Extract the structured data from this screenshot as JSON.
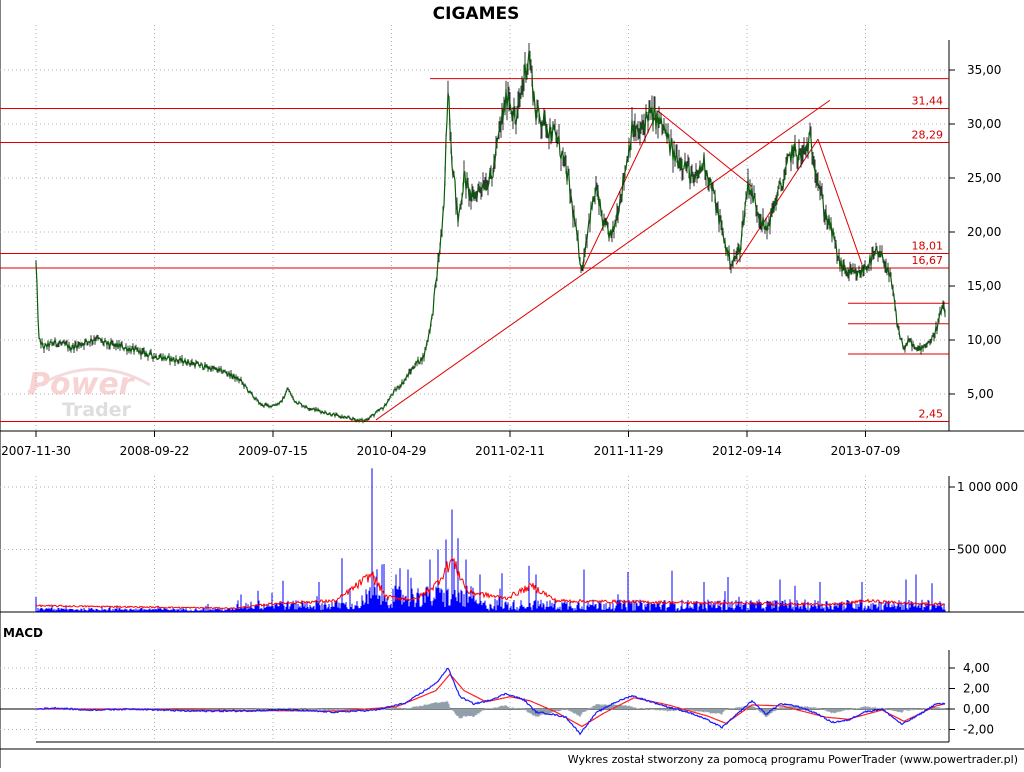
{
  "chart_data": {
    "type": "line",
    "title": "CIGAMES",
    "x_ticks": [
      "2007-11-30",
      "2008-09-22",
      "2009-07-15",
      "2010-04-29",
      "2011-02-11",
      "2011-11-29",
      "2012-09-14",
      "2013-07-09"
    ],
    "price": {
      "y_ticks": [
        "5,00",
        "10,00",
        "15,00",
        "20,00",
        "25,00",
        "30,00",
        "35,00"
      ],
      "ylim": [
        2,
        38
      ],
      "series": [
        {
          "x": 0,
          "y": 17.0
        },
        {
          "x": 3,
          "y": 10.0
        },
        {
          "x": 8,
          "y": 9.3
        },
        {
          "x": 20,
          "y": 9.8
        },
        {
          "x": 35,
          "y": 9.3
        },
        {
          "x": 50,
          "y": 9.8
        },
        {
          "x": 60,
          "y": 10.2
        },
        {
          "x": 70,
          "y": 9.6
        },
        {
          "x": 85,
          "y": 9.4
        },
        {
          "x": 100,
          "y": 9.0
        },
        {
          "x": 115,
          "y": 8.6
        },
        {
          "x": 130,
          "y": 8.3
        },
        {
          "x": 150,
          "y": 8.0
        },
        {
          "x": 170,
          "y": 7.5
        },
        {
          "x": 190,
          "y": 7.0
        },
        {
          "x": 205,
          "y": 6.2
        },
        {
          "x": 215,
          "y": 5.0
        },
        {
          "x": 225,
          "y": 4.0
        },
        {
          "x": 235,
          "y": 3.9
        },
        {
          "x": 245,
          "y": 4.2
        },
        {
          "x": 252,
          "y": 5.5
        },
        {
          "x": 258,
          "y": 4.4
        },
        {
          "x": 270,
          "y": 3.8
        },
        {
          "x": 285,
          "y": 3.4
        },
        {
          "x": 300,
          "y": 3.0
        },
        {
          "x": 315,
          "y": 2.7
        },
        {
          "x": 328,
          "y": 2.5
        },
        {
          "x": 338,
          "y": 3.1
        },
        {
          "x": 348,
          "y": 3.8
        },
        {
          "x": 358,
          "y": 5.2
        },
        {
          "x": 368,
          "y": 6.2
        },
        {
          "x": 378,
          "y": 7.6
        },
        {
          "x": 388,
          "y": 8.5
        },
        {
          "x": 396,
          "y": 12.0
        },
        {
          "x": 402,
          "y": 17.0
        },
        {
          "x": 408,
          "y": 22.0
        },
        {
          "x": 412,
          "y": 34.0
        },
        {
          "x": 416,
          "y": 27.0
        },
        {
          "x": 422,
          "y": 21.0
        },
        {
          "x": 428,
          "y": 25.0
        },
        {
          "x": 436,
          "y": 23.0
        },
        {
          "x": 446,
          "y": 24.5
        },
        {
          "x": 456,
          "y": 25.0
        },
        {
          "x": 464,
          "y": 29.5
        },
        {
          "x": 472,
          "y": 33.0
        },
        {
          "x": 480,
          "y": 30.0
        },
        {
          "x": 488,
          "y": 34.5
        },
        {
          "x": 493,
          "y": 36.5
        },
        {
          "x": 500,
          "y": 31.0
        },
        {
          "x": 510,
          "y": 30.0
        },
        {
          "x": 522,
          "y": 28.5
        },
        {
          "x": 532,
          "y": 25.0
        },
        {
          "x": 540,
          "y": 20.0
        },
        {
          "x": 546,
          "y": 16.5
        },
        {
          "x": 552,
          "y": 20.5
        },
        {
          "x": 560,
          "y": 24.0
        },
        {
          "x": 568,
          "y": 20.5
        },
        {
          "x": 576,
          "y": 19.5
        },
        {
          "x": 586,
          "y": 24.0
        },
        {
          "x": 596,
          "y": 29.5
        },
        {
          "x": 604,
          "y": 29.0
        },
        {
          "x": 612,
          "y": 31.0
        },
        {
          "x": 620,
          "y": 30.5
        },
        {
          "x": 628,
          "y": 29.5
        },
        {
          "x": 638,
          "y": 27.0
        },
        {
          "x": 648,
          "y": 26.5
        },
        {
          "x": 658,
          "y": 24.5
        },
        {
          "x": 668,
          "y": 26.5
        },
        {
          "x": 676,
          "y": 24.0
        },
        {
          "x": 684,
          "y": 21.0
        },
        {
          "x": 690,
          "y": 18.5
        },
        {
          "x": 696,
          "y": 17.0
        },
        {
          "x": 704,
          "y": 18.5
        },
        {
          "x": 712,
          "y": 24.5
        },
        {
          "x": 722,
          "y": 22.0
        },
        {
          "x": 730,
          "y": 20.0
        },
        {
          "x": 740,
          "y": 23.0
        },
        {
          "x": 748,
          "y": 25.0
        },
        {
          "x": 756,
          "y": 27.5
        },
        {
          "x": 766,
          "y": 27.0
        },
        {
          "x": 774,
          "y": 28.5
        },
        {
          "x": 782,
          "y": 25.0
        },
        {
          "x": 788,
          "y": 22.0
        },
        {
          "x": 796,
          "y": 20.0
        },
        {
          "x": 804,
          "y": 17.0
        },
        {
          "x": 812,
          "y": 16.2
        },
        {
          "x": 822,
          "y": 16.0
        },
        {
          "x": 832,
          "y": 17.0
        },
        {
          "x": 840,
          "y": 18.0
        },
        {
          "x": 848,
          "y": 17.5
        },
        {
          "x": 856,
          "y": 15.0
        },
        {
          "x": 862,
          "y": 11.0
        },
        {
          "x": 868,
          "y": 9.2
        },
        {
          "x": 874,
          "y": 10.0
        },
        {
          "x": 880,
          "y": 9.0
        },
        {
          "x": 888,
          "y": 9.5
        },
        {
          "x": 896,
          "y": 10.0
        },
        {
          "x": 902,
          "y": 11.5
        },
        {
          "x": 906,
          "y": 13.0
        },
        {
          "x": 909,
          "y": 12.5
        }
      ],
      "levels": [
        {
          "label": "31,44",
          "value": 31.44
        },
        {
          "label": "28,29",
          "value": 28.29
        },
        {
          "label": "18,01",
          "value": 18.01
        },
        {
          "label": "16,67",
          "value": 16.67
        },
        {
          "label": "2,45",
          "value": 2.45
        }
      ],
      "short_levels": [
        34.2,
        13.4,
        11.5,
        8.7
      ],
      "trendlines": [
        {
          "x0": 340,
          "y0": 2.6,
          "x1": 794,
          "y1": 32.2
        },
        {
          "x0": 546,
          "y0": 16.4,
          "x1": 622,
          "y1": 31.2
        },
        {
          "x0": 622,
          "y0": 31.2,
          "x1": 716,
          "y1": 24.2
        },
        {
          "x0": 700,
          "y0": 17.0,
          "x1": 782,
          "y1": 28.6
        },
        {
          "x0": 782,
          "y0": 28.6,
          "x1": 826,
          "y1": 17.0
        }
      ]
    },
    "volume": {
      "y_ticks": [
        "500 000",
        "1 000 000"
      ],
      "ylim": [
        0,
        1200000
      ],
      "spikes": [
        {
          "x": 0,
          "v": 120000
        },
        {
          "x": 66,
          "v": 40000
        },
        {
          "x": 170,
          "v": 50000
        },
        {
          "x": 205,
          "v": 140000
        },
        {
          "x": 222,
          "v": 170000
        },
        {
          "x": 247,
          "v": 250000
        },
        {
          "x": 283,
          "v": 240000
        },
        {
          "x": 306,
          "v": 430000
        },
        {
          "x": 336,
          "v": 1150000
        },
        {
          "x": 346,
          "v": 380000
        },
        {
          "x": 360,
          "v": 300000
        },
        {
          "x": 372,
          "v": 340000
        },
        {
          "x": 394,
          "v": 420000
        },
        {
          "x": 402,
          "v": 500000
        },
        {
          "x": 410,
          "v": 580000
        },
        {
          "x": 416,
          "v": 820000
        },
        {
          "x": 422,
          "v": 590000
        },
        {
          "x": 430,
          "v": 420000
        },
        {
          "x": 444,
          "v": 300000
        },
        {
          "x": 466,
          "v": 310000
        },
        {
          "x": 493,
          "v": 370000
        },
        {
          "x": 500,
          "v": 300000
        },
        {
          "x": 548,
          "v": 340000
        },
        {
          "x": 592,
          "v": 320000
        },
        {
          "x": 636,
          "v": 330000
        },
        {
          "x": 668,
          "v": 240000
        },
        {
          "x": 692,
          "v": 280000
        },
        {
          "x": 744,
          "v": 260000
        },
        {
          "x": 784,
          "v": 240000
        },
        {
          "x": 826,
          "v": 240000
        },
        {
          "x": 870,
          "v": 260000
        },
        {
          "x": 880,
          "v": 300000
        },
        {
          "x": 896,
          "v": 230000
        }
      ],
      "avg": [
        {
          "x": 0,
          "v": 50000
        },
        {
          "x": 200,
          "v": 30000
        },
        {
          "x": 240,
          "v": 70000
        },
        {
          "x": 300,
          "v": 90000
        },
        {
          "x": 336,
          "v": 300000
        },
        {
          "x": 350,
          "v": 120000
        },
        {
          "x": 380,
          "v": 100000
        },
        {
          "x": 400,
          "v": 220000
        },
        {
          "x": 416,
          "v": 420000
        },
        {
          "x": 432,
          "v": 160000
        },
        {
          "x": 470,
          "v": 110000
        },
        {
          "x": 496,
          "v": 210000
        },
        {
          "x": 520,
          "v": 90000
        },
        {
          "x": 600,
          "v": 80000
        },
        {
          "x": 700,
          "v": 70000
        },
        {
          "x": 800,
          "v": 60000
        },
        {
          "x": 830,
          "v": 90000
        },
        {
          "x": 870,
          "v": 70000
        },
        {
          "x": 909,
          "v": 60000
        }
      ]
    },
    "macd": {
      "title": "MACD",
      "y_ticks": [
        "-2,00",
        "0,00",
        "2,00",
        "4,00"
      ],
      "ylim": [
        -2.9,
        5.0
      ],
      "macd": [
        {
          "x": 0,
          "y": 0.0
        },
        {
          "x": 20,
          "y": 0.1
        },
        {
          "x": 50,
          "y": -0.1
        },
        {
          "x": 100,
          "y": 0.0
        },
        {
          "x": 150,
          "y": -0.2
        },
        {
          "x": 200,
          "y": -0.2
        },
        {
          "x": 250,
          "y": -0.1
        },
        {
          "x": 300,
          "y": -0.3
        },
        {
          "x": 340,
          "y": -0.1
        },
        {
          "x": 370,
          "y": 0.6
        },
        {
          "x": 400,
          "y": 2.5
        },
        {
          "x": 412,
          "y": 4.0
        },
        {
          "x": 424,
          "y": 1.2
        },
        {
          "x": 438,
          "y": 0.5
        },
        {
          "x": 452,
          "y": 0.8
        },
        {
          "x": 470,
          "y": 1.5
        },
        {
          "x": 488,
          "y": 0.9
        },
        {
          "x": 500,
          "y": -0.3
        },
        {
          "x": 516,
          "y": -0.5
        },
        {
          "x": 530,
          "y": -0.8
        },
        {
          "x": 544,
          "y": -2.4
        },
        {
          "x": 560,
          "y": -0.4
        },
        {
          "x": 578,
          "y": 0.6
        },
        {
          "x": 596,
          "y": 1.3
        },
        {
          "x": 612,
          "y": 0.8
        },
        {
          "x": 632,
          "y": 0.2
        },
        {
          "x": 652,
          "y": -0.3
        },
        {
          "x": 670,
          "y": -1.0
        },
        {
          "x": 686,
          "y": -1.8
        },
        {
          "x": 700,
          "y": -0.6
        },
        {
          "x": 716,
          "y": 0.8
        },
        {
          "x": 730,
          "y": -0.5
        },
        {
          "x": 744,
          "y": 0.5
        },
        {
          "x": 760,
          "y": 0.3
        },
        {
          "x": 780,
          "y": -0.4
        },
        {
          "x": 796,
          "y": -1.3
        },
        {
          "x": 812,
          "y": -1.1
        },
        {
          "x": 828,
          "y": -0.3
        },
        {
          "x": 846,
          "y": 0.0
        },
        {
          "x": 866,
          "y": -1.5
        },
        {
          "x": 884,
          "y": -0.5
        },
        {
          "x": 900,
          "y": 0.5
        },
        {
          "x": 909,
          "y": 0.5
        }
      ],
      "signal": [
        {
          "x": 0,
          "y": 0.0
        },
        {
          "x": 100,
          "y": 0.0
        },
        {
          "x": 200,
          "y": -0.15
        },
        {
          "x": 300,
          "y": -0.2
        },
        {
          "x": 360,
          "y": 0.2
        },
        {
          "x": 400,
          "y": 1.8
        },
        {
          "x": 414,
          "y": 3.4
        },
        {
          "x": 428,
          "y": 1.8
        },
        {
          "x": 450,
          "y": 0.7
        },
        {
          "x": 474,
          "y": 1.2
        },
        {
          "x": 494,
          "y": 0.8
        },
        {
          "x": 520,
          "y": -0.3
        },
        {
          "x": 546,
          "y": -1.7
        },
        {
          "x": 568,
          "y": -0.4
        },
        {
          "x": 598,
          "y": 1.1
        },
        {
          "x": 632,
          "y": 0.4
        },
        {
          "x": 672,
          "y": -0.7
        },
        {
          "x": 690,
          "y": -1.4
        },
        {
          "x": 716,
          "y": 0.4
        },
        {
          "x": 746,
          "y": 0.3
        },
        {
          "x": 790,
          "y": -0.8
        },
        {
          "x": 812,
          "y": -1.0
        },
        {
          "x": 846,
          "y": -0.1
        },
        {
          "x": 868,
          "y": -1.2
        },
        {
          "x": 900,
          "y": 0.3
        },
        {
          "x": 909,
          "y": 0.5
        }
      ]
    }
  },
  "logo": {
    "line1": "Power",
    "line2": "Trader"
  },
  "footer": "Wykres został stworzony za pomocą programu PowerTrader (www.powertrader.pl)",
  "colors": {
    "price_line": "#0a5c0a",
    "volume_bar": "#0000ff",
    "volume_avg": "#ff0000",
    "level_line": "#e00000",
    "macd_line": "#1a1aff",
    "signal_line": "#ff2020",
    "macd_hist": "#8fa0aa",
    "grid": "#b0b0b0"
  }
}
